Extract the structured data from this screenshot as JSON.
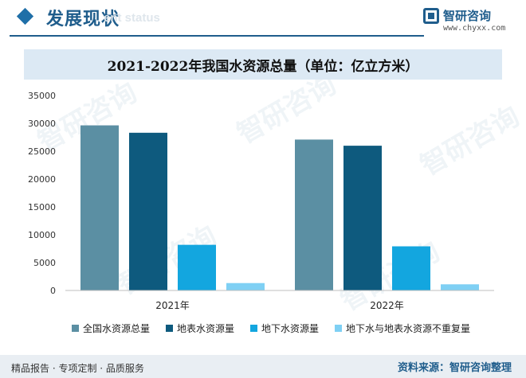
{
  "header": {
    "section_title": "发展现状",
    "section_subtitle": "ent status",
    "brand_name": "智研咨询",
    "brand_url": "www.chyxx.com"
  },
  "legend": {
    "items": [
      {
        "label": "全国水资源总量",
        "color": "#5b8fa3"
      },
      {
        "label": "地表水资源量",
        "color": "#0e5a7e"
      },
      {
        "label": "地下水资源量",
        "color": "#13a6df"
      },
      {
        "label": "地下水与地表水资源不重复量",
        "color": "#7fd0f4"
      }
    ]
  },
  "footer": {
    "left_text": "精品报告 · 专项定制 · 品质服务",
    "source_text": "资料来源：智研咨询整理"
  },
  "watermark": {
    "text": "智研咨询"
  },
  "chart_data": {
    "type": "bar",
    "title": "2021-2022年我国水资源总量（单位：亿立方米）",
    "categories": [
      "2021年",
      "2022年"
    ],
    "series": [
      {
        "name": "全国水资源总量",
        "color": "#5b8fa3",
        "values": [
          29638,
          27088
        ]
      },
      {
        "name": "地表水资源量",
        "color": "#0e5a7e",
        "values": [
          28311,
          25984
        ]
      },
      {
        "name": "地下水资源量",
        "color": "#13a6df",
        "values": [
          8196,
          7924
        ]
      },
      {
        "name": "地下水与地表水资源不重复量",
        "color": "#7fd0f4",
        "values": [
          1327,
          1104
        ]
      }
    ],
    "ylim": [
      0,
      35000
    ],
    "yticks": [
      "0",
      "5000",
      "10000",
      "15000",
      "20000",
      "25000",
      "30000",
      "35000"
    ],
    "xlabel": "",
    "ylabel": ""
  }
}
